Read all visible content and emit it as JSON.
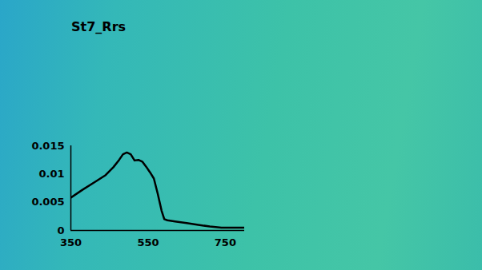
{
  "chart_data": {
    "type": "line",
    "title": "St7_Rrs",
    "x": [
      350,
      380,
      410,
      440,
      460,
      475,
      485,
      495,
      505,
      515,
      525,
      535,
      545,
      555,
      565,
      575,
      585,
      592,
      600,
      620,
      650,
      680,
      710,
      740,
      770,
      800
    ],
    "series": [
      {
        "name": null,
        "color": "#000000",
        "values": [
          0.0058,
          0.0072,
          0.0085,
          0.0098,
          0.0112,
          0.0125,
          0.0135,
          0.0138,
          0.0135,
          0.0124,
          0.0125,
          0.0122,
          0.0113,
          0.0103,
          0.0092,
          0.0065,
          0.0035,
          0.002,
          0.0018,
          0.0016,
          0.0013,
          0.001,
          0.0007,
          0.0005,
          0.0005,
          0.0005
        ]
      }
    ],
    "xlim": [
      350,
      800
    ],
    "xticks": [
      350,
      550,
      750
    ],
    "ylim": [
      0,
      0.015
    ],
    "yticks": [
      0,
      0.005,
      0.01,
      0.015
    ],
    "grid": false
  }
}
